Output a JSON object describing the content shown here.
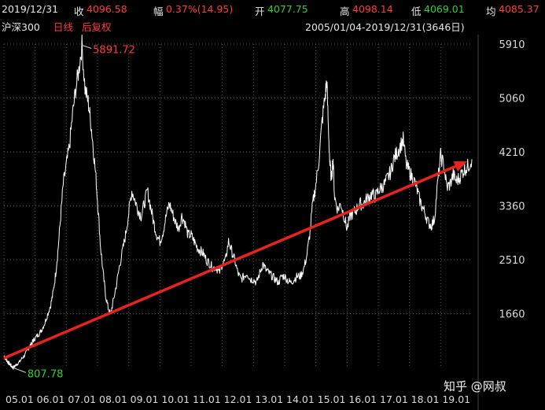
{
  "quote": {
    "date": "2019/12/31",
    "close_label": "收",
    "close": "4096.58",
    "change_label": "幅",
    "change": "0.37%(14.95)",
    "open_label": "开",
    "open": "4077.75",
    "high_label": "高",
    "high": "4098.14",
    "low_label": "低",
    "low": "4069.01",
    "avg_label": "均",
    "avg": "4085.37"
  },
  "subheader": {
    "index_name": "沪深300",
    "period": "日线",
    "adjust": "后复权",
    "range": "2005/01/04-2019/12/31(3646日)"
  },
  "watermark": {
    "text": "知乎 @网叔"
  },
  "colors": {
    "price_line": "#ffffff",
    "trend_arrow": "#e8231e",
    "grid": "#5a5a5a",
    "axis_text": "#d9d9d9",
    "high_label": "#ff3b3b",
    "low_label": "#2fd02f"
  },
  "chart_data": {
    "type": "line",
    "ylim": [
      800,
      5910
    ],
    "y_ticks": [
      "5910",
      "5060",
      "4210",
      "3360",
      "2510",
      "1660"
    ],
    "x_ticks": [
      "05.01",
      "06.01",
      "07.01",
      "08.01",
      "09.01",
      "10.01",
      "11.01",
      "12.01",
      "13.01",
      "14.01",
      "15.01",
      "16.01",
      "17.01",
      "18.01",
      "19.01"
    ],
    "high_annotation": "5891.72",
    "low_annotation": "807.78",
    "series": [
      {
        "x": [
          0,
          0.04,
          0.08,
          0.12,
          0.16,
          0.2,
          0.25,
          0.3,
          0.36,
          0.42,
          0.5,
          0.58,
          0.66,
          0.75,
          0.82,
          0.88,
          0.92,
          0.96,
          1.04,
          1.12,
          1.2,
          1.3,
          1.4,
          1.5,
          1.58,
          1.66,
          1.74,
          1.82,
          1.9,
          2.0,
          2.1,
          2.2,
          2.3,
          2.4,
          2.5,
          2.6,
          2.7,
          2.78,
          2.86,
          2.95,
          3.02,
          3.1,
          3.18,
          3.26,
          3.34,
          3.42,
          3.5,
          3.6,
          3.7,
          3.8,
          3.9,
          4.0,
          4.1,
          4.2,
          4.3,
          4.4,
          4.5,
          4.6,
          4.7,
          4.8,
          4.9,
          5.0,
          5.1,
          5.2,
          5.3,
          5.4,
          5.5,
          5.6,
          5.7,
          5.8,
          5.9,
          6.0,
          6.1,
          6.2,
          6.3,
          6.4,
          6.5,
          6.6,
          6.7,
          6.8,
          6.9,
          7.0,
          7.1,
          7.2,
          7.3,
          7.4,
          7.5,
          7.6,
          7.7,
          7.8,
          7.9,
          8.0,
          8.1,
          8.2,
          8.3,
          8.4,
          8.5,
          8.6,
          8.7,
          8.8,
          8.9,
          9.0,
          9.1,
          9.2,
          9.3,
          9.4,
          9.5,
          9.6,
          9.7,
          9.8,
          9.9,
          10.0,
          10.1,
          10.2,
          10.3,
          10.35,
          10.4,
          10.45,
          10.5,
          10.55,
          10.6,
          10.7,
          10.8,
          10.9,
          11.0,
          11.1,
          11.2,
          11.3,
          11.4,
          11.5,
          11.6,
          11.7,
          11.8,
          11.9,
          12.0,
          12.1,
          12.2,
          12.3,
          12.4,
          12.5,
          12.6,
          12.7,
          12.8,
          12.9,
          13.0,
          13.1,
          13.2,
          13.3,
          13.4,
          13.5,
          13.6,
          13.7,
          13.8,
          13.9,
          14.0,
          14.1,
          14.2,
          14.3,
          14.4,
          14.5,
          14.6,
          14.7,
          14.8,
          14.9,
          15.0
        ],
        "y": [
          1000,
          960,
          940,
          900,
          880,
          860,
          830,
          808,
          840,
          870,
          900,
          960,
          1000,
          1080,
          1150,
          1180,
          1220,
          1250,
          1300,
          1340,
          1400,
          1500,
          1650,
          1800,
          2000,
          2300,
          2700,
          3200,
          3700,
          4000,
          4300,
          4800,
          5200,
          5500,
          5891,
          5200,
          5000,
          4700,
          4300,
          3800,
          3300,
          2700,
          2300,
          1950,
          1750,
          1650,
          1850,
          2100,
          2400,
          2650,
          2900,
          3250,
          3600,
          3450,
          3300,
          3200,
          3400,
          3600,
          3350,
          3100,
          2900,
          2800,
          2950,
          3200,
          3400,
          3250,
          3100,
          3000,
          3200,
          3100,
          2900,
          2900,
          2800,
          2700,
          2650,
          2600,
          2500,
          2450,
          2380,
          2400,
          2300,
          2450,
          2500,
          2800,
          2650,
          2500,
          2300,
          2200,
          2250,
          2300,
          2200,
          2200,
          2150,
          2300,
          2450,
          2350,
          2300,
          2250,
          2200,
          2150,
          2250,
          2250,
          2180,
          2150,
          2200,
          2250,
          2250,
          2350,
          2550,
          2900,
          3400,
          3700,
          4100,
          4700,
          5100,
          5350,
          4600,
          4000,
          3800,
          4100,
          3500,
          3300,
          3400,
          3200,
          3000,
          3200,
          3250,
          3300,
          3400,
          3380,
          3450,
          3500,
          3550,
          3500,
          3600,
          3650,
          3700,
          3800,
          3900,
          4100,
          4200,
          4300,
          4400,
          4000,
          3900,
          3800,
          3700,
          3500,
          3350,
          3250,
          3100,
          3050,
          3150,
          3700,
          4150,
          4000,
          3650,
          3700,
          3850,
          3750,
          3800,
          3900,
          3950,
          4000,
          4096
        ]
      }
    ],
    "trend": {
      "x": [
        0,
        14.85
      ],
      "y": [
        960,
        4060
      ]
    }
  }
}
